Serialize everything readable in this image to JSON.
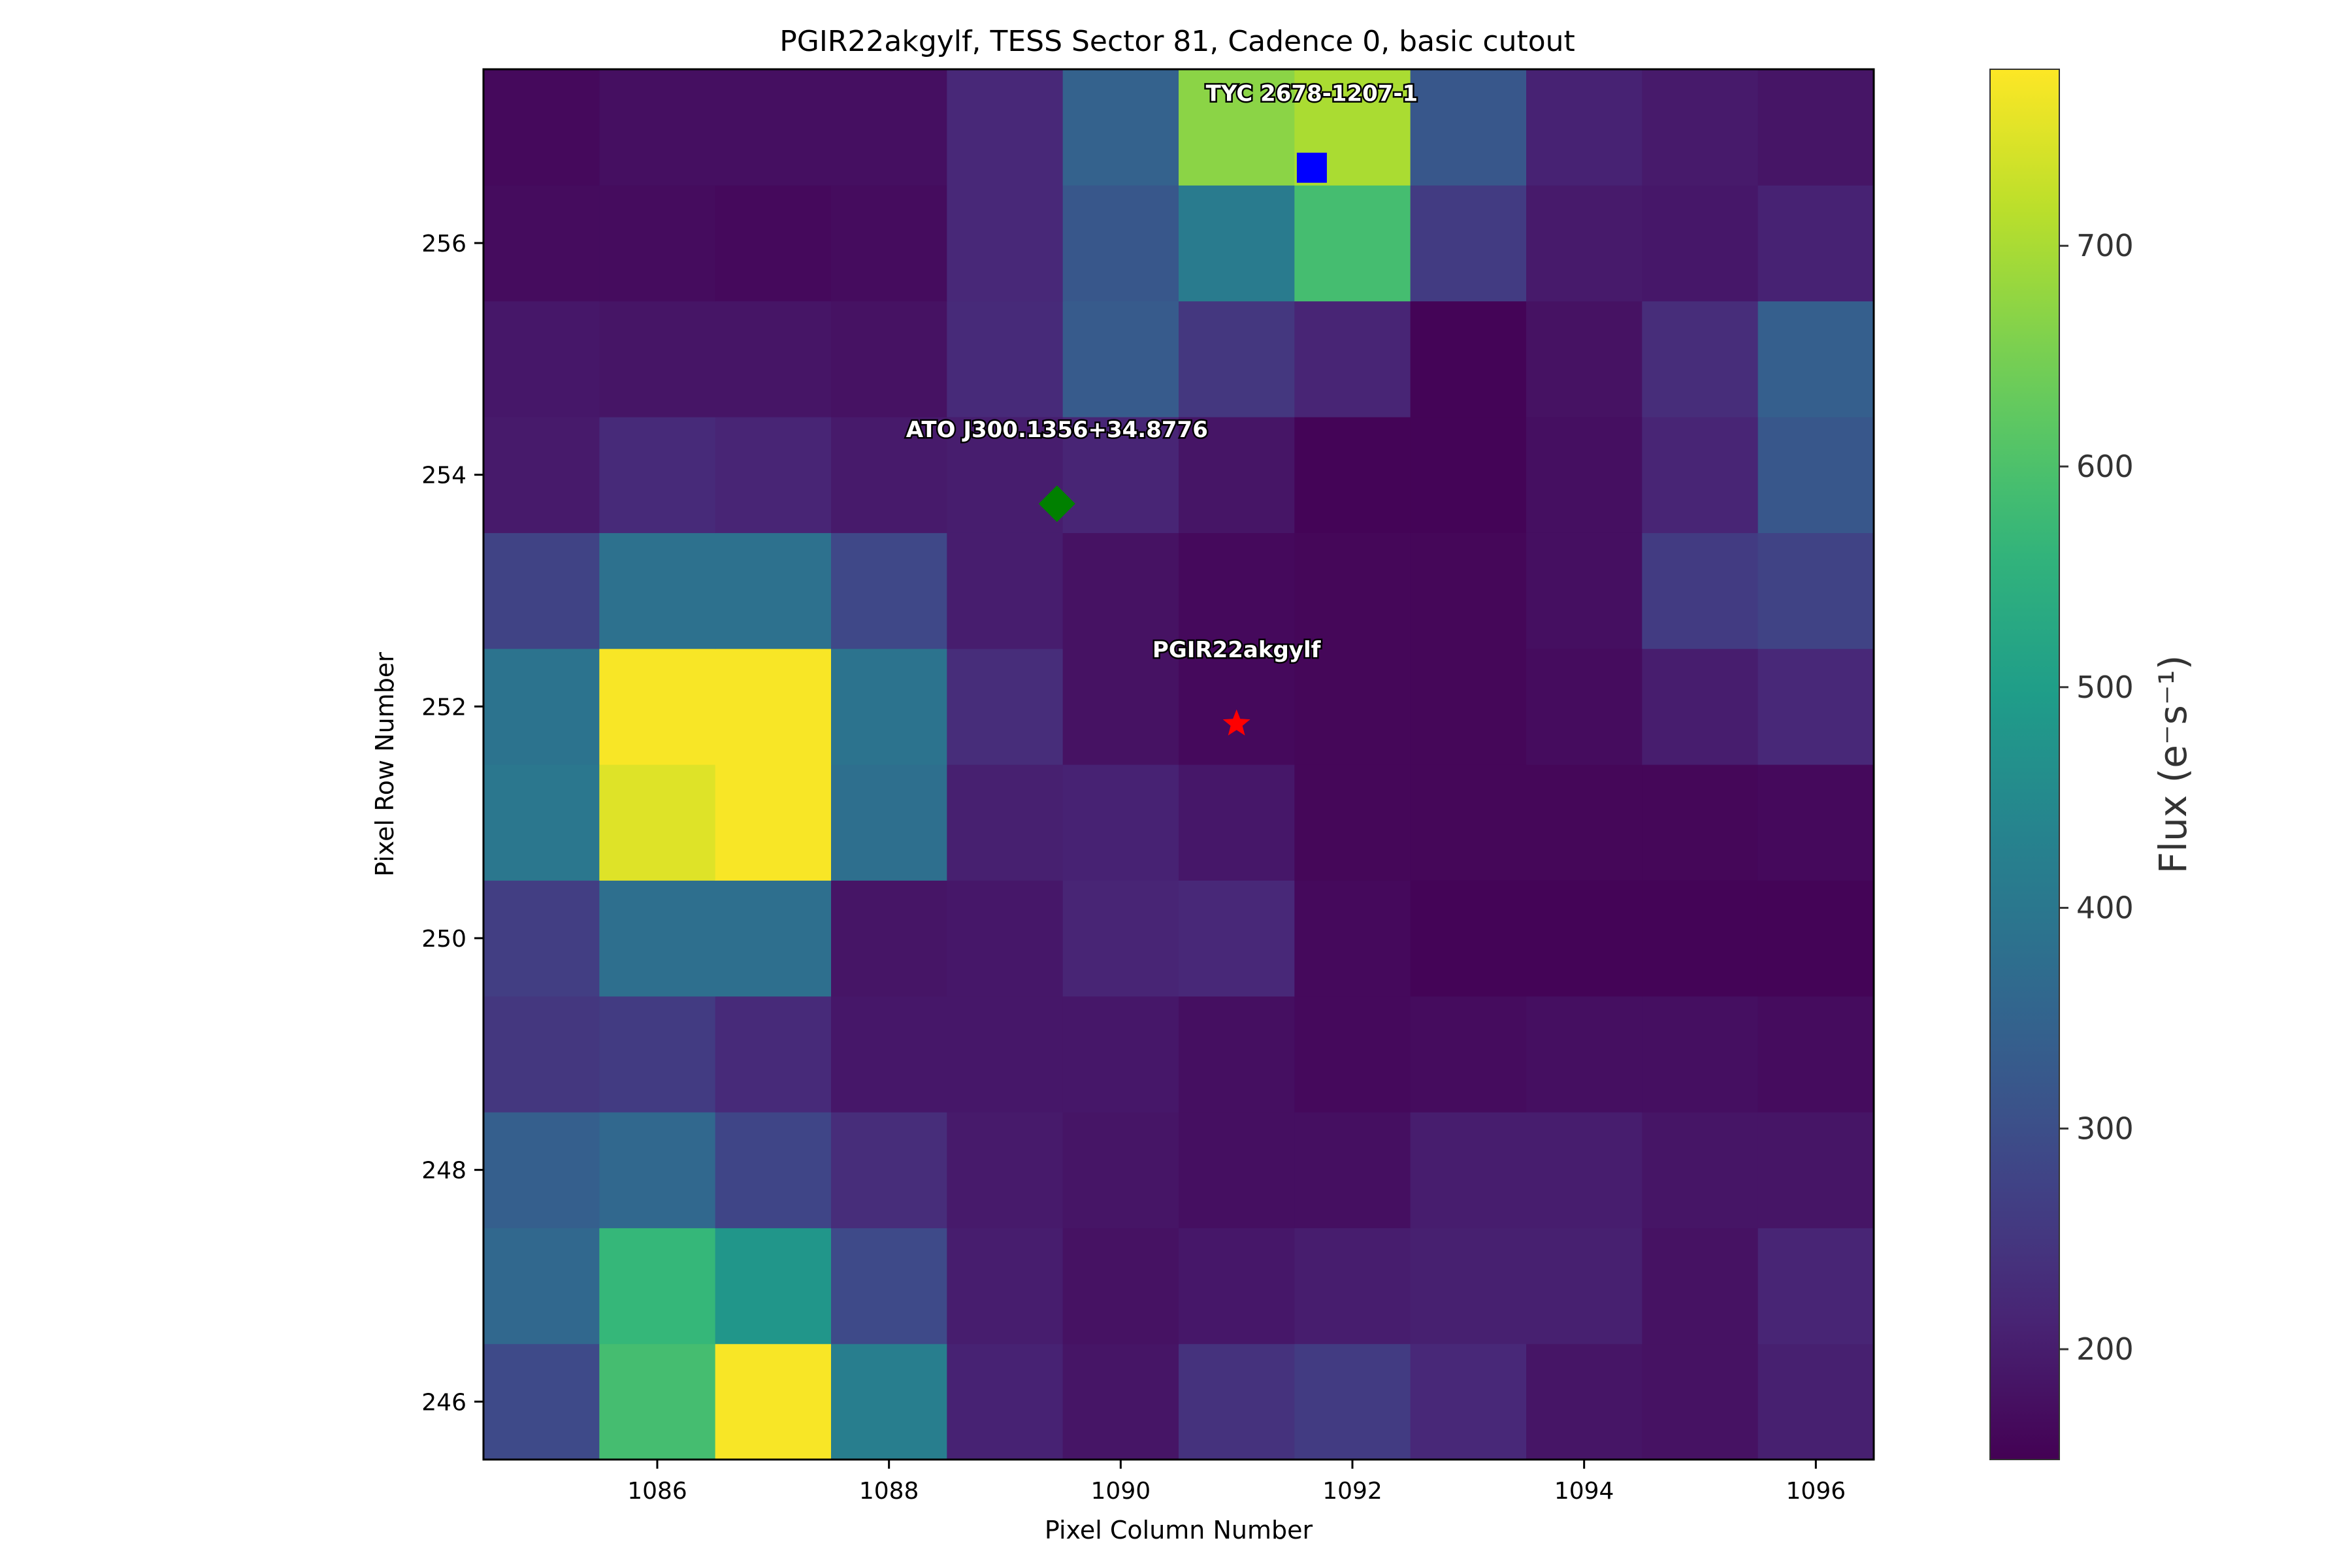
{
  "chart_data": {
    "type": "heatmap",
    "title": "PGIR22akgylf, TESS Sector 81, Cadence 0, basic cutout",
    "xlabel": "Pixel Column Number",
    "ylabel": "Pixel Row Number",
    "colorbar_label": "Flux (e⁻s⁻¹)",
    "colormap": "viridis",
    "xlim": [
      1084.5,
      1096.5
    ],
    "ylim": [
      245.5,
      257.5
    ],
    "x_ticks": [
      1086,
      1088,
      1090,
      1092,
      1094,
      1096
    ],
    "y_ticks": [
      246,
      248,
      250,
      252,
      254,
      256
    ],
    "color_range": [
      150,
      780
    ],
    "colorbar_ticks": [
      200,
      300,
      400,
      500,
      600,
      700
    ],
    "columns": [
      1085,
      1086,
      1087,
      1088,
      1089,
      1090,
      1091,
      1092,
      1093,
      1094,
      1095,
      1096
    ],
    "rows": [
      246,
      247,
      248,
      249,
      250,
      251,
      252,
      253,
      254,
      255,
      256,
      257
    ],
    "values": [
      [
        290,
        590,
        775,
        420,
        210,
        185,
        240,
        260,
        220,
        185,
        180,
        205
      ],
      [
        360,
        570,
        480,
        290,
        200,
        180,
        190,
        200,
        205,
        205,
        180,
        215
      ],
      [
        340,
        360,
        280,
        230,
        195,
        185,
        175,
        175,
        200,
        200,
        185,
        185
      ],
      [
        250,
        260,
        225,
        190,
        190,
        190,
        175,
        165,
        170,
        175,
        175,
        170
      ],
      [
        265,
        380,
        380,
        185,
        190,
        215,
        220,
        165,
        155,
        155,
        155,
        155
      ],
      [
        400,
        750,
        775,
        380,
        205,
        210,
        190,
        160,
        160,
        160,
        160,
        165
      ],
      [
        390,
        775,
        775,
        390,
        230,
        180,
        165,
        160,
        160,
        170,
        200,
        220
      ],
      [
        275,
        385,
        385,
        285,
        200,
        180,
        165,
        160,
        160,
        175,
        260,
        275
      ],
      [
        195,
        225,
        215,
        195,
        200,
        215,
        185,
        155,
        155,
        175,
        215,
        320
      ],
      [
        190,
        185,
        185,
        180,
        225,
        330,
        250,
        215,
        155,
        180,
        230,
        340
      ],
      [
        170,
        170,
        165,
        170,
        220,
        320,
        410,
        590,
        260,
        195,
        190,
        210
      ],
      [
        165,
        175,
        175,
        175,
        220,
        345,
        670,
        700,
        320,
        210,
        195,
        185
      ]
    ],
    "markers": [
      {
        "name": "PGIR22akgylf",
        "shape": "star",
        "color": "#ff0000",
        "x": 1091.0,
        "y": 251.85
      },
      {
        "name": "ATO J300.1356+34.8776",
        "shape": "diamond",
        "color": "#008000",
        "x": 1089.45,
        "y": 253.75
      },
      {
        "name": "TYC 2678-1207-1",
        "shape": "square",
        "color": "#0000ff",
        "x": 1091.65,
        "y": 256.65
      }
    ]
  }
}
